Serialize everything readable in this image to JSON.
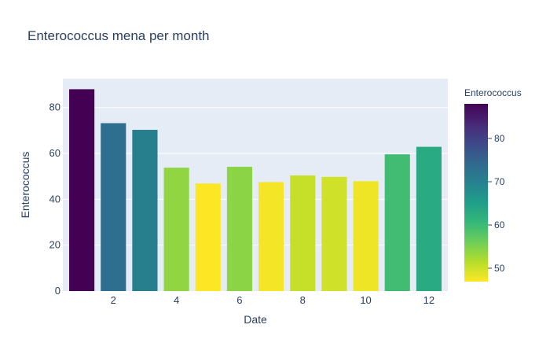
{
  "chart_data": {
    "type": "bar",
    "title": "Enterococcus mena per month",
    "xlabel": "Date",
    "ylabel": "Enterococcus",
    "x": [
      1,
      2,
      3,
      4,
      5,
      6,
      7,
      8,
      9,
      10,
      11,
      12
    ],
    "values": [
      88,
      73.2,
      70.3,
      53.8,
      46.9,
      54.2,
      47.5,
      50.4,
      49.8,
      47.9,
      59.6,
      62.9
    ],
    "xlim": [
      0.4,
      12.6
    ],
    "ylim": [
      0,
      92.6
    ],
    "xticks": [
      2,
      4,
      6,
      8,
      10,
      12
    ],
    "yticks": [
      0,
      20,
      40,
      60,
      80
    ],
    "colorbar": {
      "title": "Enterococcus",
      "range": [
        46.9,
        88
      ],
      "ticks": [
        50,
        60,
        70,
        80
      ],
      "colorscale": "viridis-reversed"
    },
    "colors": {
      "plot_background": "#e5ecf6",
      "grid": "#ffffff",
      "text": "#2a3f5f"
    }
  }
}
